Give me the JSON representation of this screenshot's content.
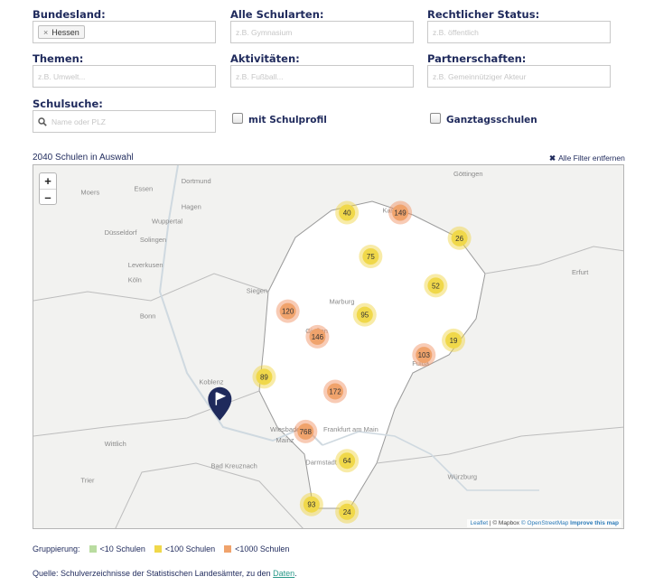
{
  "filters": {
    "bundesland": {
      "label": "Bundesland:",
      "tag": "Hessen"
    },
    "schularten": {
      "label": "Alle Schularten:",
      "placeholder": "z.B. Gymnasium"
    },
    "status": {
      "label": "Rechtlicher Status:",
      "placeholder": "z.B. öffentlich"
    },
    "themen": {
      "label": "Themen:",
      "placeholder": "z.B. Umwelt..."
    },
    "aktivitaeten": {
      "label": "Aktivitäten:",
      "placeholder": "z.B. Fußball..."
    },
    "partnerschaften": {
      "label": "Partnerschaften:",
      "placeholder": "z.B. Gemeinnütziger Akteur"
    },
    "schulsuche": {
      "label": "Schulsuche:",
      "placeholder": "Name oder PLZ"
    },
    "schulprofil": {
      "label": "mit Schulprofil",
      "checked": false
    },
    "ganztag": {
      "label": "Ganztagsschulen",
      "checked": false
    }
  },
  "results": {
    "count_text": "2040 Schulen in Auswahl",
    "clear_label": "Alle Filter entfernen"
  },
  "map": {
    "zoom_in": "+",
    "zoom_out": "–",
    "place_labels": [
      {
        "name": "Dortmund",
        "tx": 0.25,
        "ty": 0.05
      },
      {
        "name": "Göttingen",
        "tx": 0.71,
        "ty": 0.03
      },
      {
        "name": "Hagen",
        "tx": 0.25,
        "ty": 0.12
      },
      {
        "name": "Moers",
        "tx": 0.08,
        "ty": 0.08
      },
      {
        "name": "Essen",
        "tx": 0.17,
        "ty": 0.07
      },
      {
        "name": "Wuppertal",
        "tx": 0.2,
        "ty": 0.16
      },
      {
        "name": "Düsseldorf",
        "tx": 0.12,
        "ty": 0.19
      },
      {
        "name": "Solingen",
        "tx": 0.18,
        "ty": 0.21
      },
      {
        "name": "Leverkusen",
        "tx": 0.16,
        "ty": 0.28
      },
      {
        "name": "Köln",
        "tx": 0.16,
        "ty": 0.32
      },
      {
        "name": "Bonn",
        "tx": 0.18,
        "ty": 0.42
      },
      {
        "name": "Siegen",
        "tx": 0.36,
        "ty": 0.35
      },
      {
        "name": "Marburg",
        "tx": 0.5,
        "ty": 0.38
      },
      {
        "name": "Gießen",
        "tx": 0.46,
        "ty": 0.46
      },
      {
        "name": "Koblenz",
        "tx": 0.28,
        "ty": 0.6
      },
      {
        "name": "Wiesbaden",
        "tx": 0.4,
        "ty": 0.73
      },
      {
        "name": "Mainz",
        "tx": 0.41,
        "ty": 0.76
      },
      {
        "name": "Frankfurt am Main",
        "tx": 0.49,
        "ty": 0.73
      },
      {
        "name": "Darmstadt",
        "tx": 0.46,
        "ty": 0.82
      },
      {
        "name": "Erfurt",
        "tx": 0.91,
        "ty": 0.3
      },
      {
        "name": "Würzburg",
        "tx": 0.7,
        "ty": 0.86
      },
      {
        "name": "Kassel",
        "tx": 0.59,
        "ty": 0.13
      },
      {
        "name": "Fulda",
        "tx": 0.64,
        "ty": 0.55
      },
      {
        "name": "Trier",
        "tx": 0.08,
        "ty": 0.87
      },
      {
        "name": "Wittlich",
        "tx": 0.12,
        "ty": 0.77
      },
      {
        "name": "Bad Kreuznach",
        "tx": 0.3,
        "ty": 0.83
      }
    ],
    "clusters": [
      {
        "value": 40,
        "tier": "medium",
        "tx": 0.53,
        "ty": 0.13
      },
      {
        "value": 149,
        "tier": "large",
        "tx": 0.62,
        "ty": 0.13
      },
      {
        "value": 26,
        "tier": "medium",
        "tx": 0.72,
        "ty": 0.2
      },
      {
        "value": 75,
        "tier": "medium",
        "tx": 0.57,
        "ty": 0.25
      },
      {
        "value": 52,
        "tier": "medium",
        "tx": 0.68,
        "ty": 0.33
      },
      {
        "value": 120,
        "tier": "large",
        "tx": 0.43,
        "ty": 0.4
      },
      {
        "value": 95,
        "tier": "medium",
        "tx": 0.56,
        "ty": 0.41
      },
      {
        "value": 146,
        "tier": "large",
        "tx": 0.48,
        "ty": 0.47
      },
      {
        "value": 19,
        "tier": "medium",
        "tx": 0.71,
        "ty": 0.48
      },
      {
        "value": 103,
        "tier": "large",
        "tx": 0.66,
        "ty": 0.52
      },
      {
        "value": 89,
        "tier": "medium",
        "tx": 0.39,
        "ty": 0.58
      },
      {
        "value": 172,
        "tier": "large",
        "tx": 0.51,
        "ty": 0.62
      },
      {
        "value": 768,
        "tier": "large",
        "tx": 0.46,
        "ty": 0.73
      },
      {
        "value": 64,
        "tier": "medium",
        "tx": 0.53,
        "ty": 0.81
      },
      {
        "value": 93,
        "tier": "medium",
        "tx": 0.47,
        "ty": 0.93
      },
      {
        "value": 24,
        "tier": "medium",
        "tx": 0.53,
        "ty": 0.95
      }
    ],
    "marker": {
      "tx": 0.315,
      "ty": 0.7
    },
    "attribution": {
      "leaflet": "Leaflet",
      "mapbox": "© Mapbox",
      "osm": "© OpenStreetMap",
      "improve": "Improve this map"
    }
  },
  "legend": {
    "title": "Gruppierung:",
    "items": [
      {
        "label": "<10 Schulen",
        "color": "#b9dca0"
      },
      {
        "label": "<100 Schulen",
        "color": "#f0d84a"
      },
      {
        "label": "<1000 Schulen",
        "color": "#f0a36c"
      }
    ]
  },
  "source": {
    "text": "Quelle: Schulverzeichnisse der Statistischen Landesämter, zu den",
    "link": "Daten",
    "suffix": "."
  },
  "colors": {
    "navy": "#1f2a5c",
    "cluster_medium_inner": "#f0d84a",
    "cluster_large_inner": "#f0a36c"
  }
}
